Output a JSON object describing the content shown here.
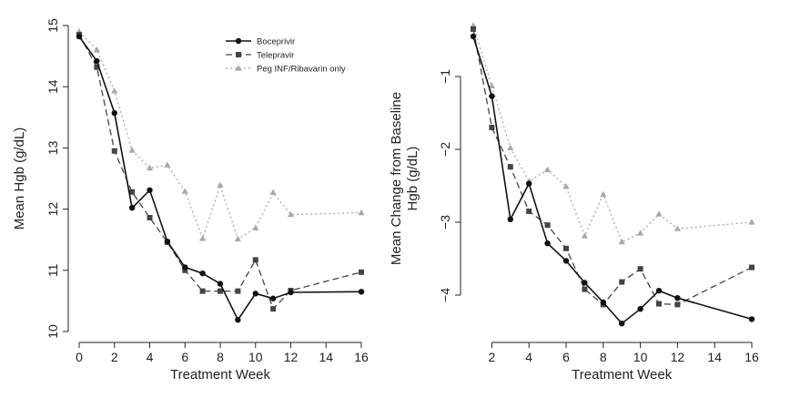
{
  "colors": {
    "boceprivir": "#111111",
    "telepravir": "#444444",
    "peg": "#a8a8a8"
  },
  "legend": {
    "entries": [
      "Boceprivir",
      "Telepravir",
      "Peg INF/Ribavarin only"
    ]
  },
  "chart_data": [
    {
      "type": "line",
      "title": "",
      "xlabel": "Treatment Week",
      "ylabel": "Mean Hgb (g/dL)",
      "xlim": [
        0,
        16
      ],
      "ylim": [
        10,
        15
      ],
      "xticks": [
        0,
        2,
        4,
        6,
        8,
        10,
        12,
        14,
        16
      ],
      "yticks": [
        10,
        11,
        12,
        13,
        14,
        15
      ],
      "series": [
        {
          "name": "Boceprivir",
          "x": [
            0,
            1,
            2,
            3,
            4,
            5,
            6,
            7,
            8,
            9,
            10,
            11,
            12,
            16
          ],
          "y": [
            14.82,
            14.42,
            13.57,
            12.02,
            12.31,
            11.47,
            11.05,
            10.95,
            10.78,
            10.19,
            10.62,
            10.54,
            10.64,
            10.65
          ]
        },
        {
          "name": "Telepravir",
          "x": [
            0,
            1,
            2,
            3,
            4,
            5,
            6,
            7,
            8,
            9,
            10,
            11,
            12,
            16
          ],
          "y": [
            14.85,
            14.32,
            12.95,
            12.28,
            11.86,
            11.46,
            11.0,
            10.66,
            10.66,
            10.66,
            11.17,
            10.37,
            10.67,
            10.97
          ]
        },
        {
          "name": "Peg INF/Ribavarin only",
          "x": [
            0,
            1,
            2,
            3,
            4,
            5,
            6,
            7,
            8,
            9,
            10,
            11,
            12,
            16
          ],
          "y": [
            14.9,
            14.6,
            13.93,
            12.96,
            12.67,
            12.72,
            12.29,
            11.52,
            12.39,
            11.51,
            11.69,
            12.27,
            11.91,
            11.94
          ]
        }
      ]
    },
    {
      "type": "line",
      "title": "",
      "xlabel": "Treatment Week",
      "ylabel": "Mean Change from Baseline\nHgb (g/dL)",
      "xlim": [
        1,
        16
      ],
      "ylim": [
        -4.5,
        -0.3
      ],
      "xticks": [
        2,
        4,
        6,
        8,
        10,
        12,
        14,
        16
      ],
      "yticks": [
        -1,
        -2,
        -3,
        -4
      ],
      "series": [
        {
          "name": "Boceprivir",
          "x": [
            1,
            2,
            3,
            4,
            5,
            6,
            7,
            8,
            9,
            10,
            11,
            12,
            16
          ],
          "y": [
            -0.45,
            -1.27,
            -2.96,
            -2.47,
            -3.29,
            -3.53,
            -3.83,
            -4.1,
            -4.39,
            -4.19,
            -3.94,
            -4.04,
            -4.33
          ]
        },
        {
          "name": "Telepravir",
          "x": [
            1,
            2,
            3,
            4,
            5,
            6,
            7,
            8,
            9,
            10,
            11,
            12,
            16
          ],
          "y": [
            -0.35,
            -1.7,
            -2.24,
            -2.85,
            -3.04,
            -3.36,
            -3.92,
            -4.13,
            -3.82,
            -3.64,
            -4.12,
            -4.13,
            -3.62
          ]
        },
        {
          "name": "Peg INF/Ribavarin only",
          "x": [
            1,
            2,
            3,
            4,
            5,
            6,
            7,
            8,
            9,
            10,
            11,
            12,
            16
          ],
          "y": [
            -0.3,
            -1.13,
            -1.98,
            -2.44,
            -2.28,
            -2.51,
            -3.19,
            -2.62,
            -3.27,
            -3.15,
            -2.89,
            -3.09,
            -3.0
          ]
        }
      ]
    }
  ]
}
